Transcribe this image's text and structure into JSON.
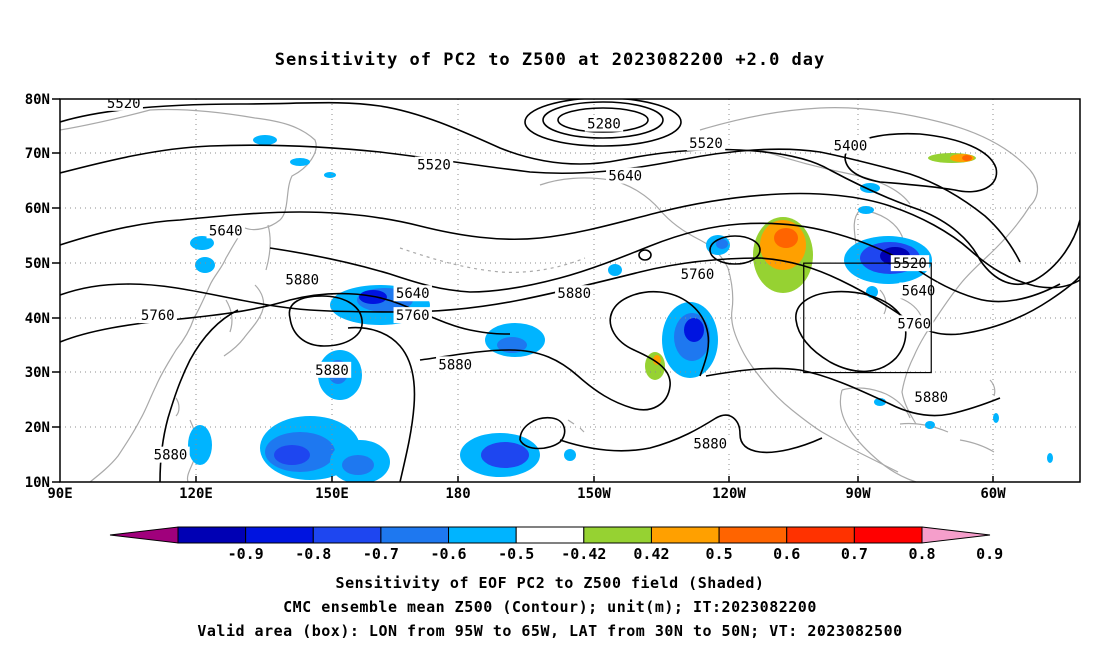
{
  "title": "Sensitivity of PC2 to Z500 at 2023082200 +2.0 day",
  "map": {
    "lat_labels": [
      "10N",
      "20N",
      "30N",
      "40N",
      "50N",
      "60N",
      "70N",
      "80N"
    ],
    "lon_labels": [
      "90E",
      "120E",
      "150E",
      "180",
      "150W",
      "120W",
      "90W",
      "60W"
    ],
    "contour_labels": [
      {
        "text": "5520",
        "lon": 105,
        "lat": 79.3
      },
      {
        "text": "5280",
        "lon": -142,
        "lat": 75.5
      },
      {
        "text": "5520",
        "lon": 178,
        "lat": 68
      },
      {
        "text": "5520",
        "lon": -118,
        "lat": 72
      },
      {
        "text": "5400",
        "lon": -84,
        "lat": 71.5
      },
      {
        "text": "5640",
        "lon": -137,
        "lat": 66
      },
      {
        "text": "5640",
        "lon": 129,
        "lat": 56
      },
      {
        "text": "5880",
        "lon": 147,
        "lat": 47
      },
      {
        "text": "5640",
        "lon": 173,
        "lat": 44.5
      },
      {
        "text": "5760",
        "lon": 113,
        "lat": 40.5
      },
      {
        "text": "5760",
        "lon": 173,
        "lat": 40.5
      },
      {
        "text": "5880",
        "lon": -149,
        "lat": 44.5
      },
      {
        "text": "5880",
        "lon": 183,
        "lat": 31.5
      },
      {
        "text": "5880",
        "lon": 154,
        "lat": 30.5
      },
      {
        "text": "5760",
        "lon": -120,
        "lat": 48
      },
      {
        "text": "5520",
        "lon": -70,
        "lat": 50
      },
      {
        "text": "5640",
        "lon": -68,
        "lat": 45
      },
      {
        "text": "5760",
        "lon": -69,
        "lat": 39
      },
      {
        "text": "5880",
        "lon": -65,
        "lat": 25.5
      },
      {
        "text": "5880",
        "lon": -117,
        "lat": 17
      },
      {
        "text": "5880",
        "lon": 116,
        "lat": 15
      }
    ],
    "valid_box": {
      "lon_min": -95,
      "lon_max": -65,
      "lat_min": 30,
      "lat_max": 50
    }
  },
  "colorbar": {
    "labels": [
      "-0.9",
      "-0.8",
      "-0.7",
      "-0.6",
      "-0.5",
      "-0.42",
      "0.42",
      "0.5",
      "0.6",
      "0.7",
      "0.8",
      "0.9"
    ],
    "colors": [
      "#a0007c",
      "#0000b4",
      "#0014e0",
      "#1e46f0",
      "#1e78f0",
      "#00b4ff",
      "#ffffff",
      "#96d232",
      "#ffa000",
      "#ff6400",
      "#ff3200",
      "#ff0000",
      "#f59ecb"
    ]
  },
  "footer": [
    "Sensitivity of EOF PC2 to Z500 field (Shaded)",
    "CMC ensemble mean Z500 (Contour); unit(m); IT:2023082200",
    "Valid area (box): LON from 95W to 65W, LAT from 30N to 50N; VT: 2023082500"
  ]
}
